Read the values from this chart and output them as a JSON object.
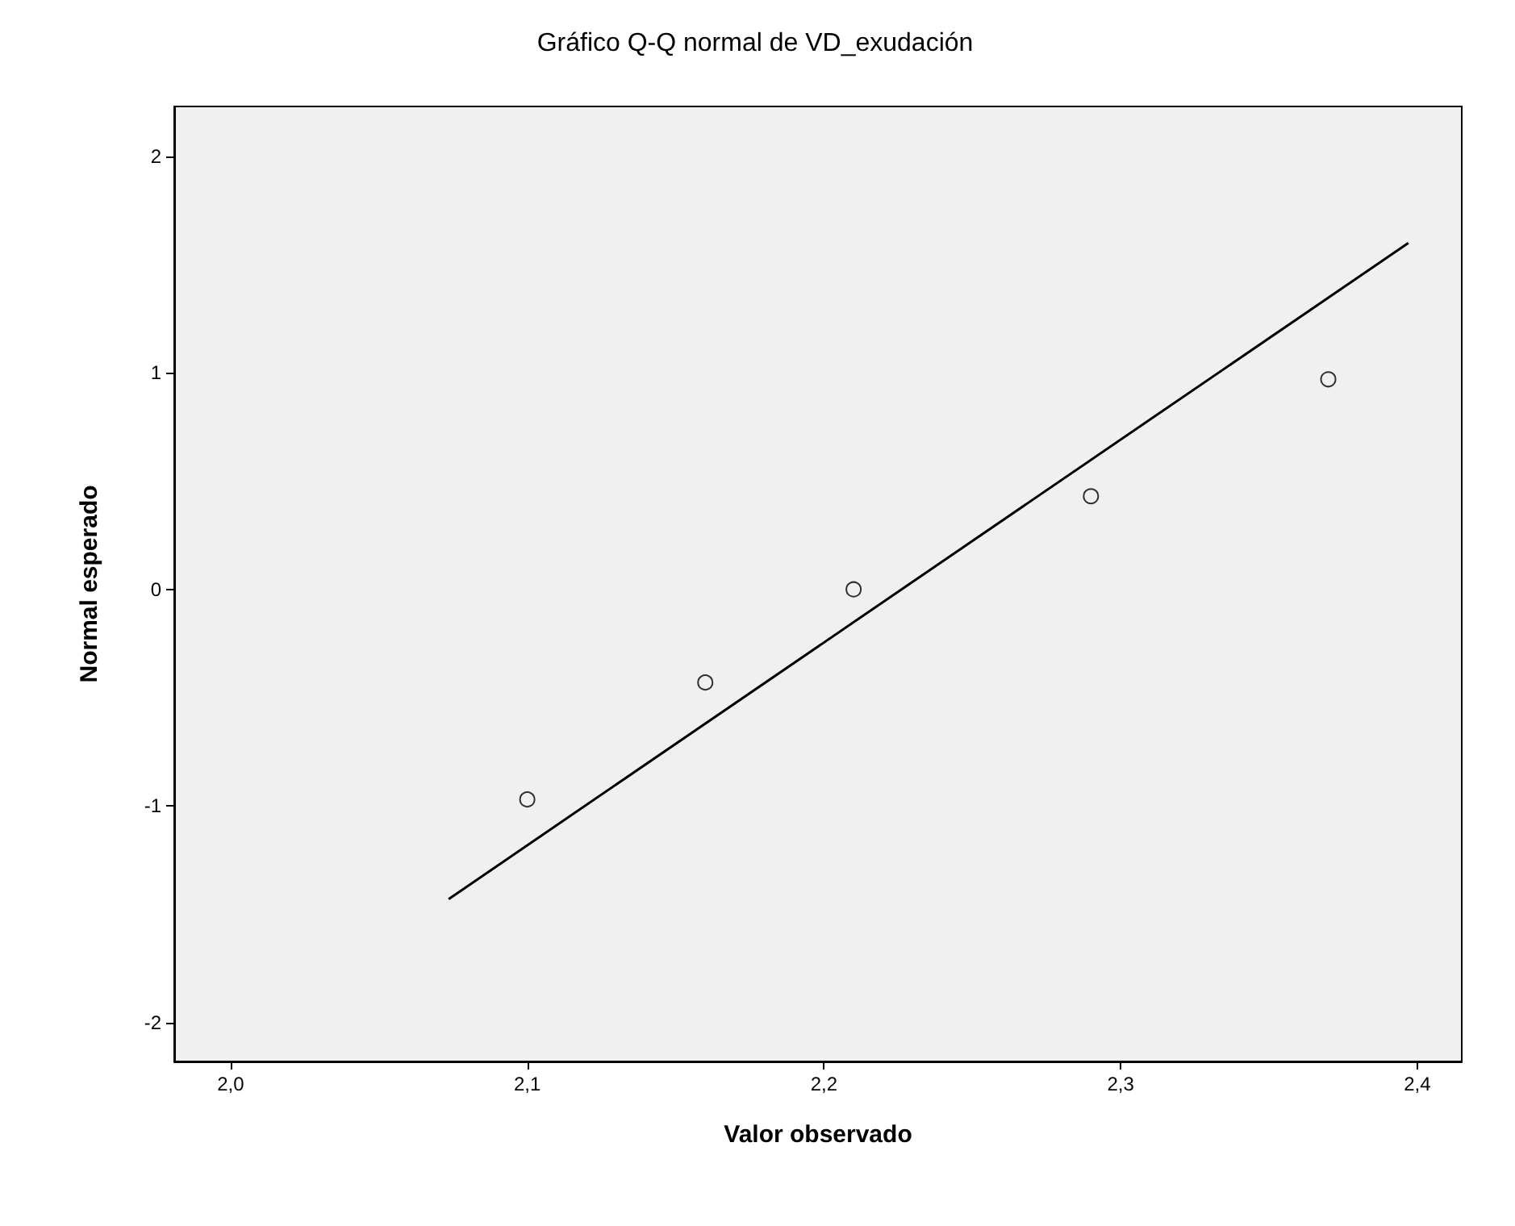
{
  "chart_data": {
    "type": "scatter",
    "title": "Gráfico Q-Q normal de VD_exudación",
    "xlabel": "Valor observado",
    "ylabel": "Normal esperado",
    "xlim": [
      1.981,
      2.415
    ],
    "ylim": [
      -2.18,
      2.23
    ],
    "xticks": [
      {
        "value": 2.0,
        "label": "2,0"
      },
      {
        "value": 2.1,
        "label": "2,1"
      },
      {
        "value": 2.2,
        "label": "2,2"
      },
      {
        "value": 2.3,
        "label": "2,3"
      },
      {
        "value": 2.4,
        "label": "2,4"
      }
    ],
    "yticks": [
      -2,
      -1,
      0,
      1,
      2
    ],
    "grid": false,
    "marker": "circle",
    "series": [
      {
        "color": "#000000",
        "x": [
          2.1,
          2.16,
          2.21,
          2.29,
          2.37
        ],
        "values": [
          -0.97,
          -0.43,
          0.0,
          0.43,
          0.97
        ]
      },
      {
        "type": "line",
        "color": "#000000",
        "marker": "none",
        "line_style": "solid",
        "x": [
          2.0735,
          2.397
        ],
        "values": [
          -1.43,
          1.6
        ]
      }
    ]
  }
}
